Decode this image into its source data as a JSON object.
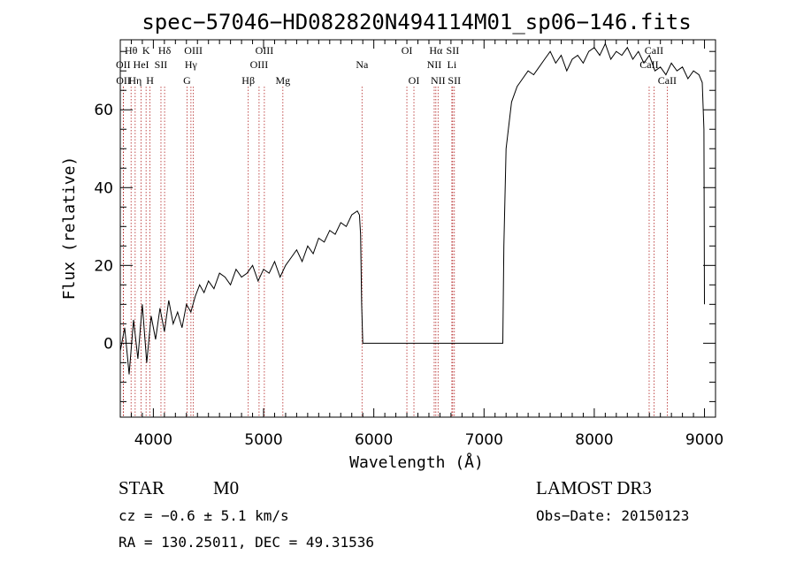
{
  "chart_data": {
    "type": "line",
    "title": "spec−57046−HD082820N494114M01_sp06−146.fits",
    "xlabel": "Wavelength (Å)",
    "ylabel": "Flux (relative)",
    "xlim": [
      3700,
      9100
    ],
    "ylim": [
      -19,
      78
    ],
    "x_ticks": [
      4000,
      5000,
      6000,
      7000,
      8000,
      9000
    ],
    "x_tick_labels": [
      "4000",
      "5000",
      "6000",
      "7000",
      "8000",
      "9000"
    ],
    "y_ticks": [
      0,
      20,
      40,
      60
    ],
    "y_tick_labels": [
      "0",
      "20",
      "40",
      "60"
    ],
    "grid": false,
    "line_color": "#000000",
    "marker_color": "#b22222",
    "series": [
      {
        "x": [
          3700,
          3740,
          3780,
          3820,
          3860,
          3900,
          3940,
          3980,
          4020,
          4060,
          4100,
          4140,
          4180,
          4220,
          4260,
          4300,
          4340,
          4380,
          4420,
          4460,
          4500,
          4550,
          4600,
          4650,
          4700,
          4750,
          4800,
          4850,
          4900,
          4950,
          5000,
          5050,
          5100,
          5150,
          5200,
          5250,
          5300,
          5350,
          5400,
          5450,
          5500,
          5550,
          5600,
          5650,
          5700,
          5750,
          5800,
          5850,
          5870,
          5880,
          5890,
          5900,
          6000,
          6500,
          7000,
          7170,
          7180,
          7200,
          7250,
          7300,
          7350,
          7400,
          7450,
          7500,
          7550,
          7600,
          7650,
          7700,
          7750,
          7800,
          7850,
          7900,
          7950,
          8000,
          8050,
          8100,
          8150,
          8200,
          8250,
          8300,
          8350,
          8400,
          8450,
          8500,
          8550,
          8600,
          8650,
          8700,
          8750,
          8800,
          8850,
          8900,
          8950,
          8980,
          8995,
          9000
        ],
        "y": [
          -2,
          4,
          -8,
          6,
          -4,
          10,
          -5,
          7,
          1,
          9,
          3,
          11,
          5,
          8,
          4,
          10,
          8,
          12,
          15,
          13,
          16,
          14,
          18,
          17,
          15,
          19,
          17,
          18,
          20,
          16,
          19,
          18,
          21,
          17,
          20,
          22,
          24,
          21,
          25,
          23,
          27,
          26,
          29,
          28,
          31,
          30,
          33,
          34,
          33,
          28,
          10,
          0,
          0,
          0,
          0,
          0,
          25,
          50,
          62,
          66,
          68,
          70,
          69,
          71,
          73,
          75,
          72,
          74,
          70,
          73,
          74,
          72,
          75,
          76,
          74,
          77,
          73,
          75,
          74,
          76,
          73,
          75,
          72,
          74,
          70,
          71,
          69,
          72,
          70,
          71,
          68,
          70,
          69,
          67,
          55,
          10
        ]
      }
    ],
    "line_markers": [
      {
        "label": "Hθ",
        "row": 1,
        "x": 3798
      },
      {
        "label": "OII",
        "row": 2,
        "x": 3727
      },
      {
        "label": "OII",
        "row": 3,
        "x": 3729
      },
      {
        "label": "Hη",
        "row": 3,
        "x": 3835
      },
      {
        "label": "K",
        "row": 1,
        "x": 3934
      },
      {
        "label": "HeI",
        "row": 2,
        "x": 3889
      },
      {
        "label": "H",
        "row": 3,
        "x": 3969
      },
      {
        "label": "SII",
        "row": 2,
        "x": 4069
      },
      {
        "label": "Hδ",
        "row": 1,
        "x": 4102
      },
      {
        "label": "OIII",
        "row": 1,
        "x": 4363
      },
      {
        "label": "Hγ",
        "row": 2,
        "x": 4341
      },
      {
        "label": "G",
        "row": 3,
        "x": 4305
      },
      {
        "label": "Hβ",
        "row": 3,
        "x": 4861
      },
      {
        "label": "OIII",
        "row": 1,
        "x": 5007
      },
      {
        "label": "OIII",
        "row": 2,
        "x": 4959
      },
      {
        "label": "Mg",
        "row": 3,
        "x": 5175
      },
      {
        "label": "Na",
        "row": 2,
        "x": 5893
      },
      {
        "label": "OI",
        "row": 1,
        "x": 6300
      },
      {
        "label": "OI",
        "row": 3,
        "x": 6364
      },
      {
        "label": "Hα",
        "row": 1,
        "x": 6563
      },
      {
        "label": "NII",
        "row": 2,
        "x": 6548
      },
      {
        "label": "NII",
        "row": 3,
        "x": 6583
      },
      {
        "label": "SII",
        "row": 1,
        "x": 6716
      },
      {
        "label": "Li",
        "row": 2,
        "x": 6708
      },
      {
        "label": "SII",
        "row": 3,
        "x": 6731
      },
      {
        "label": "CaII",
        "row": 1,
        "x": 8542
      },
      {
        "label": "CaII",
        "row": 2,
        "x": 8498
      },
      {
        "label": "CaII",
        "row": 3,
        "x": 8662
      }
    ]
  },
  "info": {
    "object_class": "STAR",
    "subclass": "M0",
    "survey": "LAMOST DR3",
    "redshift": "cz = −0.6 ± 5.1 km/s",
    "obs_date": "Obs−Date: 20150123",
    "coords": "RA = 130.25011, DEC =  49.31536"
  }
}
